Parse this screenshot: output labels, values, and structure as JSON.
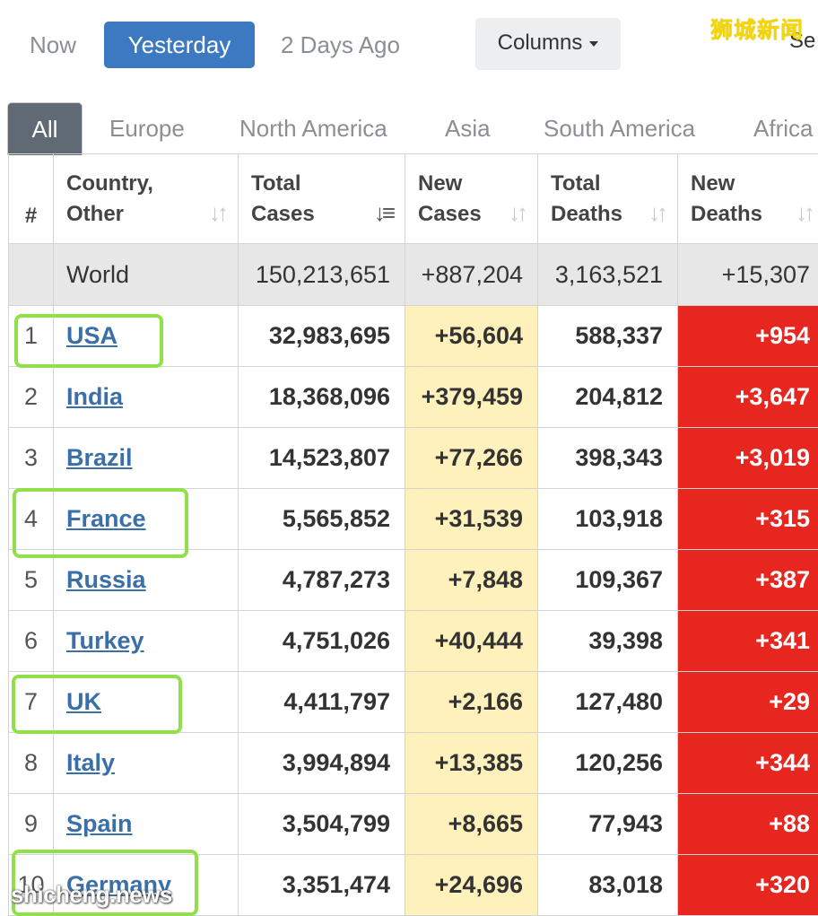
{
  "toolbar": {
    "now_label": "Now",
    "yesterday_label": "Yesterday",
    "two_days_label": "2 Days Ago",
    "columns_label": "Columns",
    "search_partial": "Se"
  },
  "watermarks": {
    "top": "狮城新闻",
    "bottom": "shicheng.news"
  },
  "tabs": [
    "All",
    "Europe",
    "North America",
    "Asia",
    "South America",
    "Africa"
  ],
  "active_tab": "All",
  "table": {
    "headers": {
      "rank": "#",
      "country": "Country, Other",
      "total_cases": "Total Cases",
      "new_cases": "New Cases",
      "total_deaths": "Total Deaths",
      "new_deaths": "New Deaths"
    },
    "world": {
      "label": "World",
      "total_cases": "150,213,651",
      "new_cases": "+887,204",
      "total_deaths": "3,163,521",
      "new_deaths": "+15,307"
    },
    "rows": [
      {
        "rank": "1",
        "country": "USA",
        "total_cases": "32,983,695",
        "new_cases": "+56,604",
        "total_deaths": "588,337",
        "new_deaths": "+954"
      },
      {
        "rank": "2",
        "country": "India",
        "total_cases": "18,368,096",
        "new_cases": "+379,459",
        "total_deaths": "204,812",
        "new_deaths": "+3,647"
      },
      {
        "rank": "3",
        "country": "Brazil",
        "total_cases": "14,523,807",
        "new_cases": "+77,266",
        "total_deaths": "398,343",
        "new_deaths": "+3,019"
      },
      {
        "rank": "4",
        "country": "France",
        "total_cases": "5,565,852",
        "new_cases": "+31,539",
        "total_deaths": "103,918",
        "new_deaths": "+315"
      },
      {
        "rank": "5",
        "country": "Russia",
        "total_cases": "4,787,273",
        "new_cases": "+7,848",
        "total_deaths": "109,367",
        "new_deaths": "+387"
      },
      {
        "rank": "6",
        "country": "Turkey",
        "total_cases": "4,751,026",
        "new_cases": "+40,444",
        "total_deaths": "39,398",
        "new_deaths": "+341"
      },
      {
        "rank": "7",
        "country": "UK",
        "total_cases": "4,411,797",
        "new_cases": "+2,166",
        "total_deaths": "127,480",
        "new_deaths": "+29"
      },
      {
        "rank": "8",
        "country": "Italy",
        "total_cases": "3,994,894",
        "new_cases": "+13,385",
        "total_deaths": "120,256",
        "new_deaths": "+344"
      },
      {
        "rank": "9",
        "country": "Spain",
        "total_cases": "3,504,799",
        "new_cases": "+8,665",
        "total_deaths": "77,943",
        "new_deaths": "+88"
      },
      {
        "rank": "10",
        "country": "Germany",
        "total_cases": "3,351,474",
        "new_cases": "+24,696",
        "total_deaths": "83,018",
        "new_deaths": "+320"
      }
    ]
  },
  "colors": {
    "accent_blue": "#3d79c0",
    "new_cases_bg": "#fff1bc",
    "new_deaths_bg": "#e6261f",
    "highlight_green": "#8fe04a"
  }
}
